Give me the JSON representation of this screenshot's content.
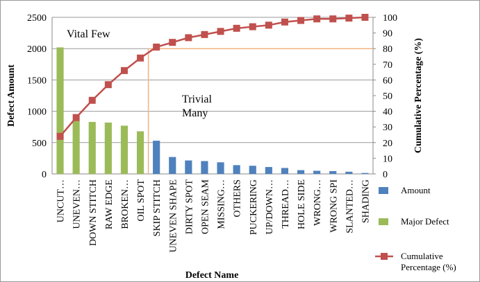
{
  "chart_data": {
    "type": "pareto",
    "x_label": "Defect Name",
    "y_label": "Defect Amount",
    "y2_label": "Cumulative Percentage (%)",
    "annotations": [
      "Vital Few",
      "Trivial Many"
    ],
    "categories": [
      "UNCUT…",
      "UNEVEN…",
      "DOWN STITCH",
      "RAW EDGE",
      "BROKEN…",
      "OIL SPOT",
      "SKIP STITCH",
      "UNEVEN SHAPE",
      "DIRTY SPOT",
      "OPEN SEAM",
      "MISSING…",
      "OTHERS",
      "PUCKERING",
      "UP/DOWN…",
      "THREAD…",
      "HOLE SIDE",
      "WRONG…",
      "WRONG SPI",
      "SLANTED…",
      "SHADING"
    ],
    "series": [
      {
        "name": "Amount",
        "color": "#4f81bd",
        "kind": "bar",
        "values": [
          null,
          null,
          null,
          null,
          null,
          null,
          530,
          270,
          215,
          205,
          185,
          140,
          130,
          110,
          95,
          60,
          50,
          45,
          35,
          15
        ]
      },
      {
        "name": "Major Defect",
        "color": "#9bbb59",
        "kind": "bar",
        "values": [
          2020,
          850,
          830,
          820,
          770,
          680,
          null,
          null,
          null,
          null,
          null,
          null,
          null,
          null,
          null,
          null,
          null,
          null,
          null,
          null
        ]
      },
      {
        "name": "Cumulative Percentage (%)",
        "color": "#c0504d",
        "kind": "line",
        "axis": "y2",
        "values": [
          24,
          36,
          47,
          57,
          66,
          74,
          81,
          84,
          87,
          89,
          91,
          93,
          94,
          95,
          97,
          98,
          99,
          99,
          99.5,
          100
        ]
      }
    ],
    "ylim": [
      0,
      2500
    ],
    "yticks": [
      0,
      500,
      1000,
      1500,
      2000,
      2500
    ],
    "y2lim": [
      0,
      100
    ],
    "y2ticks": [
      0,
      10,
      20,
      30,
      40,
      50,
      60,
      70,
      80,
      90,
      100
    ],
    "grid": true
  }
}
